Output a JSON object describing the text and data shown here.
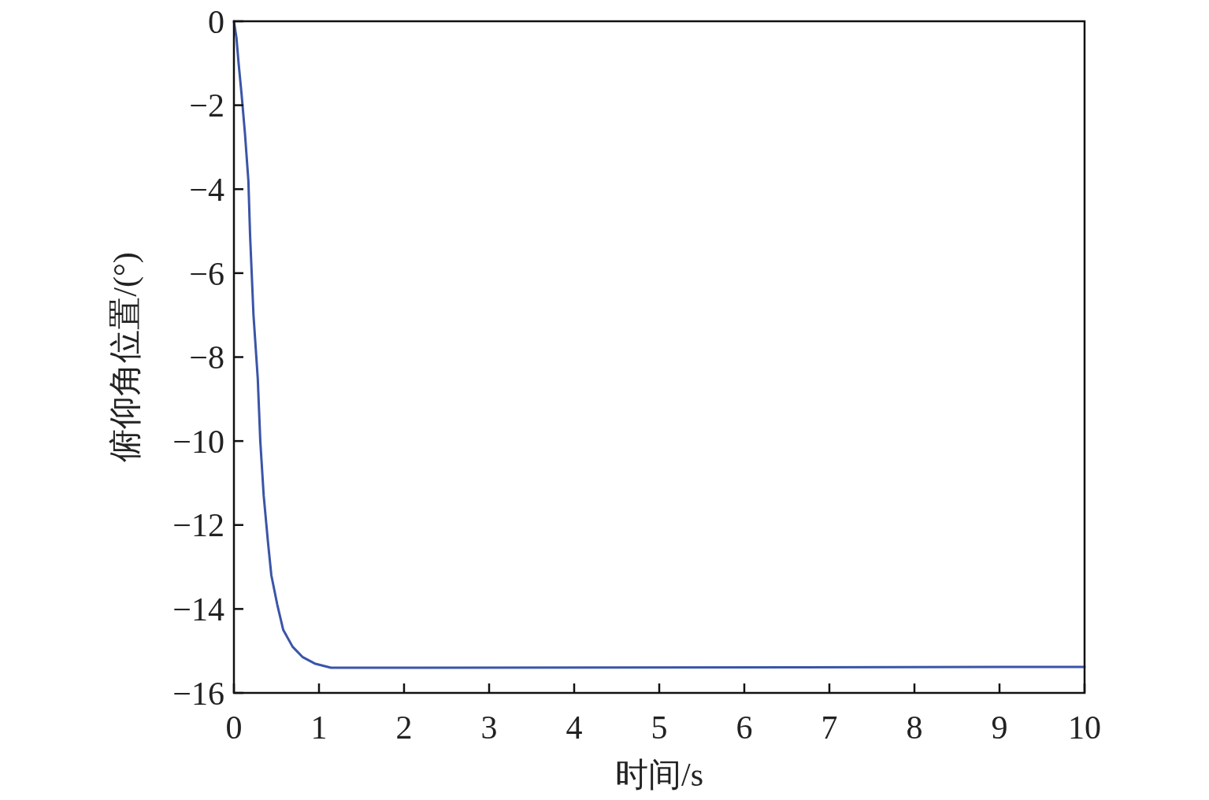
{
  "chart_data": {
    "type": "line",
    "xlabel": "时间/s",
    "ylabel": "俯仰角位置/(°)",
    "xlim": [
      0,
      10
    ],
    "xticks": [
      0,
      1,
      2,
      3,
      4,
      5,
      6,
      7,
      8,
      9,
      10
    ],
    "ylim": [
      -16,
      0
    ],
    "yticks": [
      {
        "value": -16,
        "label": "−16"
      },
      {
        "value": -14,
        "label": "−14"
      },
      {
        "value": -12,
        "label": "−12"
      },
      {
        "value": -10,
        "label": "−10"
      },
      {
        "value": -8,
        "label": "−8"
      },
      {
        "value": -6,
        "label": "−6"
      },
      {
        "value": -4,
        "label": "−4"
      },
      {
        "value": -2,
        "label": "−2"
      },
      0
    ],
    "grid": false,
    "marker": "none",
    "line_style": "solid",
    "series": [
      {
        "color": "#3a55a8",
        "x": [
          0,
          0.03,
          0.055,
          0.09,
          0.13,
          0.17,
          0.19,
          0.23,
          0.28,
          0.31,
          0.35,
          0.4,
          0.44,
          0.51,
          0.58,
          0.69,
          0.81,
          0.95,
          1.14,
          2.3,
          10
        ],
        "values": [
          0,
          -0.4,
          -1.0,
          -1.74,
          -2.68,
          -3.8,
          -5.1,
          -7.0,
          -8.5,
          -10.0,
          -11.3,
          -12.4,
          -13.2,
          -13.9,
          -14.5,
          -14.9,
          -15.15,
          -15.3,
          -15.4,
          -15.4,
          -15.38
        ]
      }
    ]
  }
}
